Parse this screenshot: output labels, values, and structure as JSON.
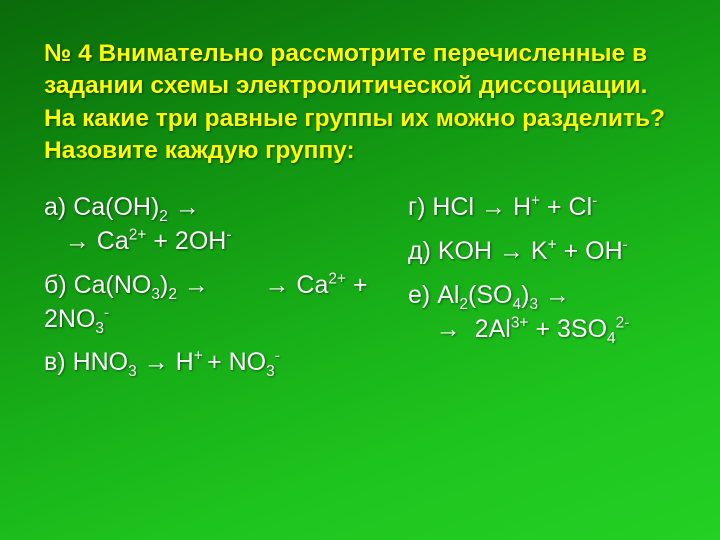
{
  "title_color": "#ffff00",
  "body_color": "#ffffff",
  "title": "№ 4 Внимательно рассмотрите перечисленные в задании схемы электролитической диссоциации. На какие три равные группы их можно разделить? Назовите каждую группу:",
  "left": [
    {
      "label": "а) ",
      "formula": "Ca(OH)<sub>2</sub> →<br>&nbsp;&nbsp;&nbsp;→ Ca<sup>2+</sup> + 2OH<sup>-</sup>"
    },
    {
      "label": "б) ",
      "formula": "Ca(NO<sub>3</sub>)<sub>2</sub> → &nbsp;&nbsp;&nbsp;&nbsp;&nbsp;&nbsp;&nbsp;→ Ca<sup>2+</sup> + 2NO<sub>3</sub><sup>-</sup>"
    },
    {
      "label": "в) ",
      "formula": "HNO<sub>3</sub> → H<sup>+ </sup>+ NO<sub>3</sub><sup>-</sup>"
    }
  ],
  "right": [
    {
      "label": "г) ",
      "formula": "HCl → H<sup>+</sup> + Cl<sup>-</sup>"
    },
    {
      "label": "д) ",
      "formula": "KOH → K<sup>+</sup> + OH<sup>-</sup>"
    },
    {
      "label": "е) ",
      "formula": "Al<sub>2</sub>(SO<sub>4</sub>)<sub>3</sub> →<br>&nbsp;&nbsp;&nbsp;&nbsp;→&nbsp; 2Al<sup>3+</sup> + 3SO<sub>4</sub><sup>2-</sup>"
    }
  ]
}
